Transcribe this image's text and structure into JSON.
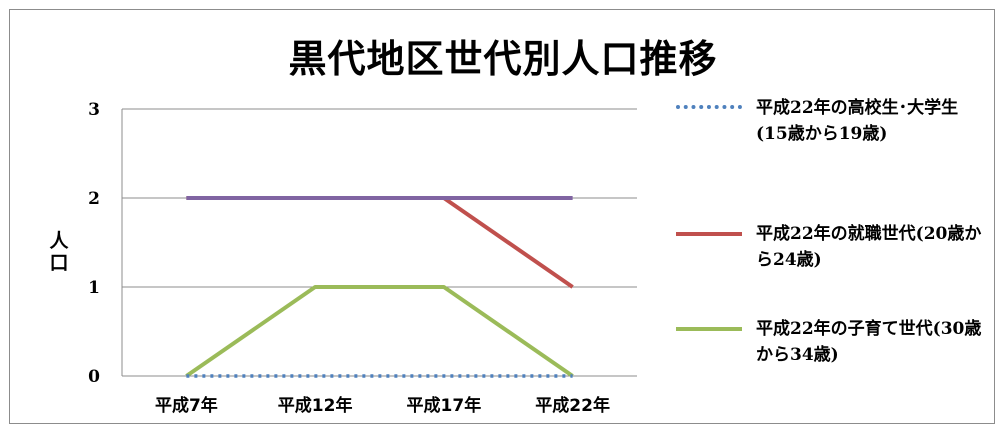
{
  "chart_data": {
    "type": "line",
    "title": "黒代地区世代別人口推移",
    "ylabel": "人口",
    "xlabel": "",
    "categories": [
      "平成7年",
      "平成12年",
      "平成17年",
      "平成22年"
    ],
    "ylim": [
      0,
      3
    ],
    "yticks": [
      "0",
      "1",
      "2",
      "3"
    ],
    "grid": true,
    "legend_position": "right",
    "series": [
      {
        "name": "平成22年の高校生･大学生(15歳から19歳)",
        "values": [
          0,
          0,
          0,
          0
        ],
        "color": "#4f81bd",
        "style": "dotted"
      },
      {
        "name": "平成22年の就職世代(20歳から24歳)",
        "values": [
          2,
          2,
          2,
          1
        ],
        "color": "#c0504d",
        "style": "solid"
      },
      {
        "name": "平成22年の子育て世代(30歳から34歳)",
        "values": [
          0,
          1,
          1,
          0
        ],
        "color": "#9bbb59",
        "style": "solid"
      },
      {
        "name": "",
        "values": [
          2,
          2,
          2,
          2
        ],
        "color": "#8064a2",
        "style": "solid"
      }
    ]
  }
}
